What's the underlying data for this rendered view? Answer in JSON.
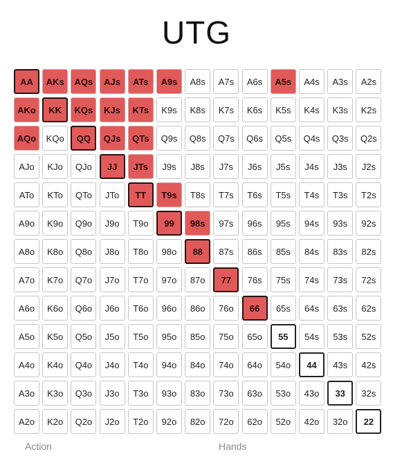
{
  "title": "UTG",
  "ranks": [
    "A",
    "K",
    "Q",
    "J",
    "T",
    "9",
    "8",
    "7",
    "6",
    "5",
    "4",
    "3",
    "2"
  ],
  "raise_hands": [
    "AA",
    "AKs",
    "AQs",
    "AJs",
    "ATs",
    "A9s",
    "A5s",
    "AKo",
    "KK",
    "KQs",
    "KJs",
    "KTs",
    "AQo",
    "QQ",
    "QJs",
    "QTs",
    "JJ",
    "JTs",
    "TT",
    "T9s",
    "99",
    "98s",
    "88",
    "77",
    "66"
  ],
  "colors": {
    "raise": "#e05a5a",
    "fold": "#ffffff",
    "pair_border": "#222222"
  },
  "footer": {
    "left": "Action",
    "right": "Hands"
  }
}
